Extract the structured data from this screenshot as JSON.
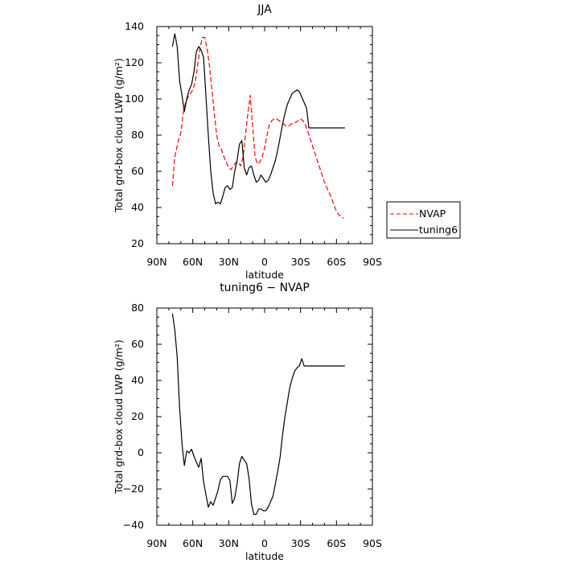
{
  "chart_data": [
    {
      "type": "line",
      "title": "JJA",
      "xlabel": "latitude",
      "ylabel": "Total grd-box cloud LWP (g/m²)",
      "xlim": [
        90,
        -90
      ],
      "ylim": [
        20,
        140
      ],
      "xticks": [
        90,
        60,
        30,
        0,
        -30,
        -60,
        -90
      ],
      "xticklabels": [
        "90N",
        "60N",
        "30N",
        "0",
        "30S",
        "60S",
        "90S"
      ],
      "yticks": [
        20,
        40,
        60,
        80,
        100,
        120,
        140
      ],
      "yticklabels": [
        "20",
        "40",
        "60",
        "80",
        "100",
        "120",
        "140"
      ],
      "legend": {
        "placement": "outside-right"
      },
      "series": [
        {
          "name": "NVAP",
          "color": "#ff0000",
          "dash": "dashed",
          "x": [
            77,
            75,
            72,
            70,
            68,
            66,
            64,
            62,
            60,
            58,
            56,
            54,
            52,
            50,
            48,
            46,
            44,
            42,
            40,
            38,
            36,
            34,
            32,
            30,
            28,
            26,
            24,
            22,
            20,
            18,
            16,
            14,
            12,
            10,
            8,
            6,
            4,
            2,
            0,
            -2,
            -4,
            -6,
            -8,
            -10,
            -12,
            -14,
            -16,
            -18,
            -20,
            -22,
            -24,
            -26,
            -28,
            -30,
            -32,
            -34,
            -36,
            -38,
            -40,
            -42,
            -44,
            -46,
            -48,
            -50,
            -52,
            -54,
            -56,
            -58,
            -60,
            -62,
            -64,
            -66
          ],
          "values": [
            52,
            68,
            77,
            81,
            92,
            98,
            101,
            103,
            105,
            109,
            118,
            128,
            134,
            134,
            128,
            118,
            105,
            92,
            80,
            74,
            72,
            68,
            65,
            62,
            61,
            63,
            65,
            65,
            63,
            68,
            80,
            92,
            102,
            85,
            68,
            64,
            65,
            68,
            73,
            80,
            86,
            88,
            89,
            89,
            88,
            87,
            86,
            85,
            85,
            86,
            87,
            87,
            88,
            89,
            88,
            86,
            82,
            78,
            74,
            70,
            66,
            62,
            58,
            54,
            51,
            48,
            45,
            41,
            38,
            36,
            35,
            34
          ]
        },
        {
          "name": "tuning6",
          "color": "#000000",
          "dash": "solid",
          "x": [
            77,
            75,
            73,
            71,
            69,
            67,
            65,
            63,
            61,
            59,
            57,
            55,
            53,
            51,
            49,
            47,
            45,
            43,
            41,
            39,
            37,
            35,
            33,
            31,
            29,
            27,
            25,
            23,
            21,
            19,
            17,
            15,
            13,
            11,
            9,
            7,
            5,
            3,
            1,
            -1,
            -3,
            -5,
            -7,
            -9,
            -11,
            -13,
            -15,
            -17,
            -19,
            -21,
            -23,
            -25,
            -27,
            -29,
            -31,
            -33,
            -35,
            -37,
            -39,
            -41,
            -43,
            -45,
            -47,
            -49,
            -51,
            -53,
            -55,
            -57,
            -59,
            -61,
            -63,
            -65,
            -67
          ],
          "values": [
            129,
            136,
            129,
            110,
            102,
            93,
            100,
            105,
            108,
            115,
            126,
            129,
            127,
            123,
            102,
            80,
            60,
            48,
            42,
            43,
            42,
            46,
            51,
            52,
            50,
            51,
            60,
            66,
            75,
            77,
            62,
            58,
            62,
            63,
            58,
            54,
            55,
            58,
            56,
            54,
            55,
            58,
            62,
            66,
            72,
            79,
            86,
            92,
            97,
            100,
            103,
            104,
            105,
            104,
            101,
            98,
            95,
            84,
            84,
            84,
            84,
            84,
            84,
            84,
            84,
            84,
            84,
            84,
            84,
            84,
            84,
            84,
            84
          ]
        }
      ]
    },
    {
      "type": "line",
      "title": "tuning6 − NVAP",
      "xlabel": "latitude",
      "ylabel": "Total grd-box cloud LWP (g/m²)",
      "xlim": [
        90,
        -90
      ],
      "ylim": [
        -40,
        80
      ],
      "xticks": [
        90,
        60,
        30,
        0,
        -30,
        -60,
        -90
      ],
      "xticklabels": [
        "90N",
        "60N",
        "30N",
        "0",
        "30S",
        "60S",
        "90S"
      ],
      "yticks": [
        -40,
        -20,
        0,
        20,
        40,
        60,
        80
      ],
      "yticklabels": [
        "−40",
        "−20",
        "0",
        "20",
        "40",
        "60",
        "80"
      ],
      "series": [
        {
          "color": "#000000",
          "dash": "solid",
          "x": [
            77,
            75,
            73,
            71,
            69,
            67,
            65,
            63,
            61,
            59,
            57,
            55,
            53,
            51,
            49,
            47,
            45,
            43,
            41,
            39,
            37,
            35,
            33,
            31,
            29,
            27,
            25,
            23,
            21,
            19,
            17,
            15,
            13,
            11,
            9,
            7,
            5,
            3,
            1,
            -1,
            -3,
            -5,
            -7,
            -9,
            -11,
            -13,
            -15,
            -17,
            -19,
            -21,
            -23,
            -25,
            -27,
            -29,
            -31,
            -33,
            -35,
            -37,
            -39,
            -41,
            -43,
            -45,
            -47,
            -49,
            -51,
            -53,
            -55,
            -57,
            -59,
            -61,
            -63,
            -65,
            -67
          ],
          "values": [
            77,
            68,
            53,
            25,
            5,
            -7,
            1,
            0,
            2,
            -2,
            -5,
            -8,
            -3,
            -16,
            -23,
            -30,
            -27,
            -29,
            -25,
            -21,
            -15,
            -13,
            -13,
            -13,
            -15,
            -28,
            -25,
            -17,
            -6,
            -2,
            -4,
            -6,
            -14,
            -28,
            -34,
            -34,
            -31,
            -31,
            -32,
            -32,
            -30,
            -27,
            -24,
            -17,
            -10,
            -2,
            10,
            20,
            28,
            36,
            41,
            45,
            47,
            48,
            52,
            48,
            48,
            48,
            48,
            48,
            48,
            48,
            48,
            48,
            48,
            48,
            48,
            48,
            48,
            48,
            48,
            48,
            48
          ]
        }
      ]
    }
  ]
}
